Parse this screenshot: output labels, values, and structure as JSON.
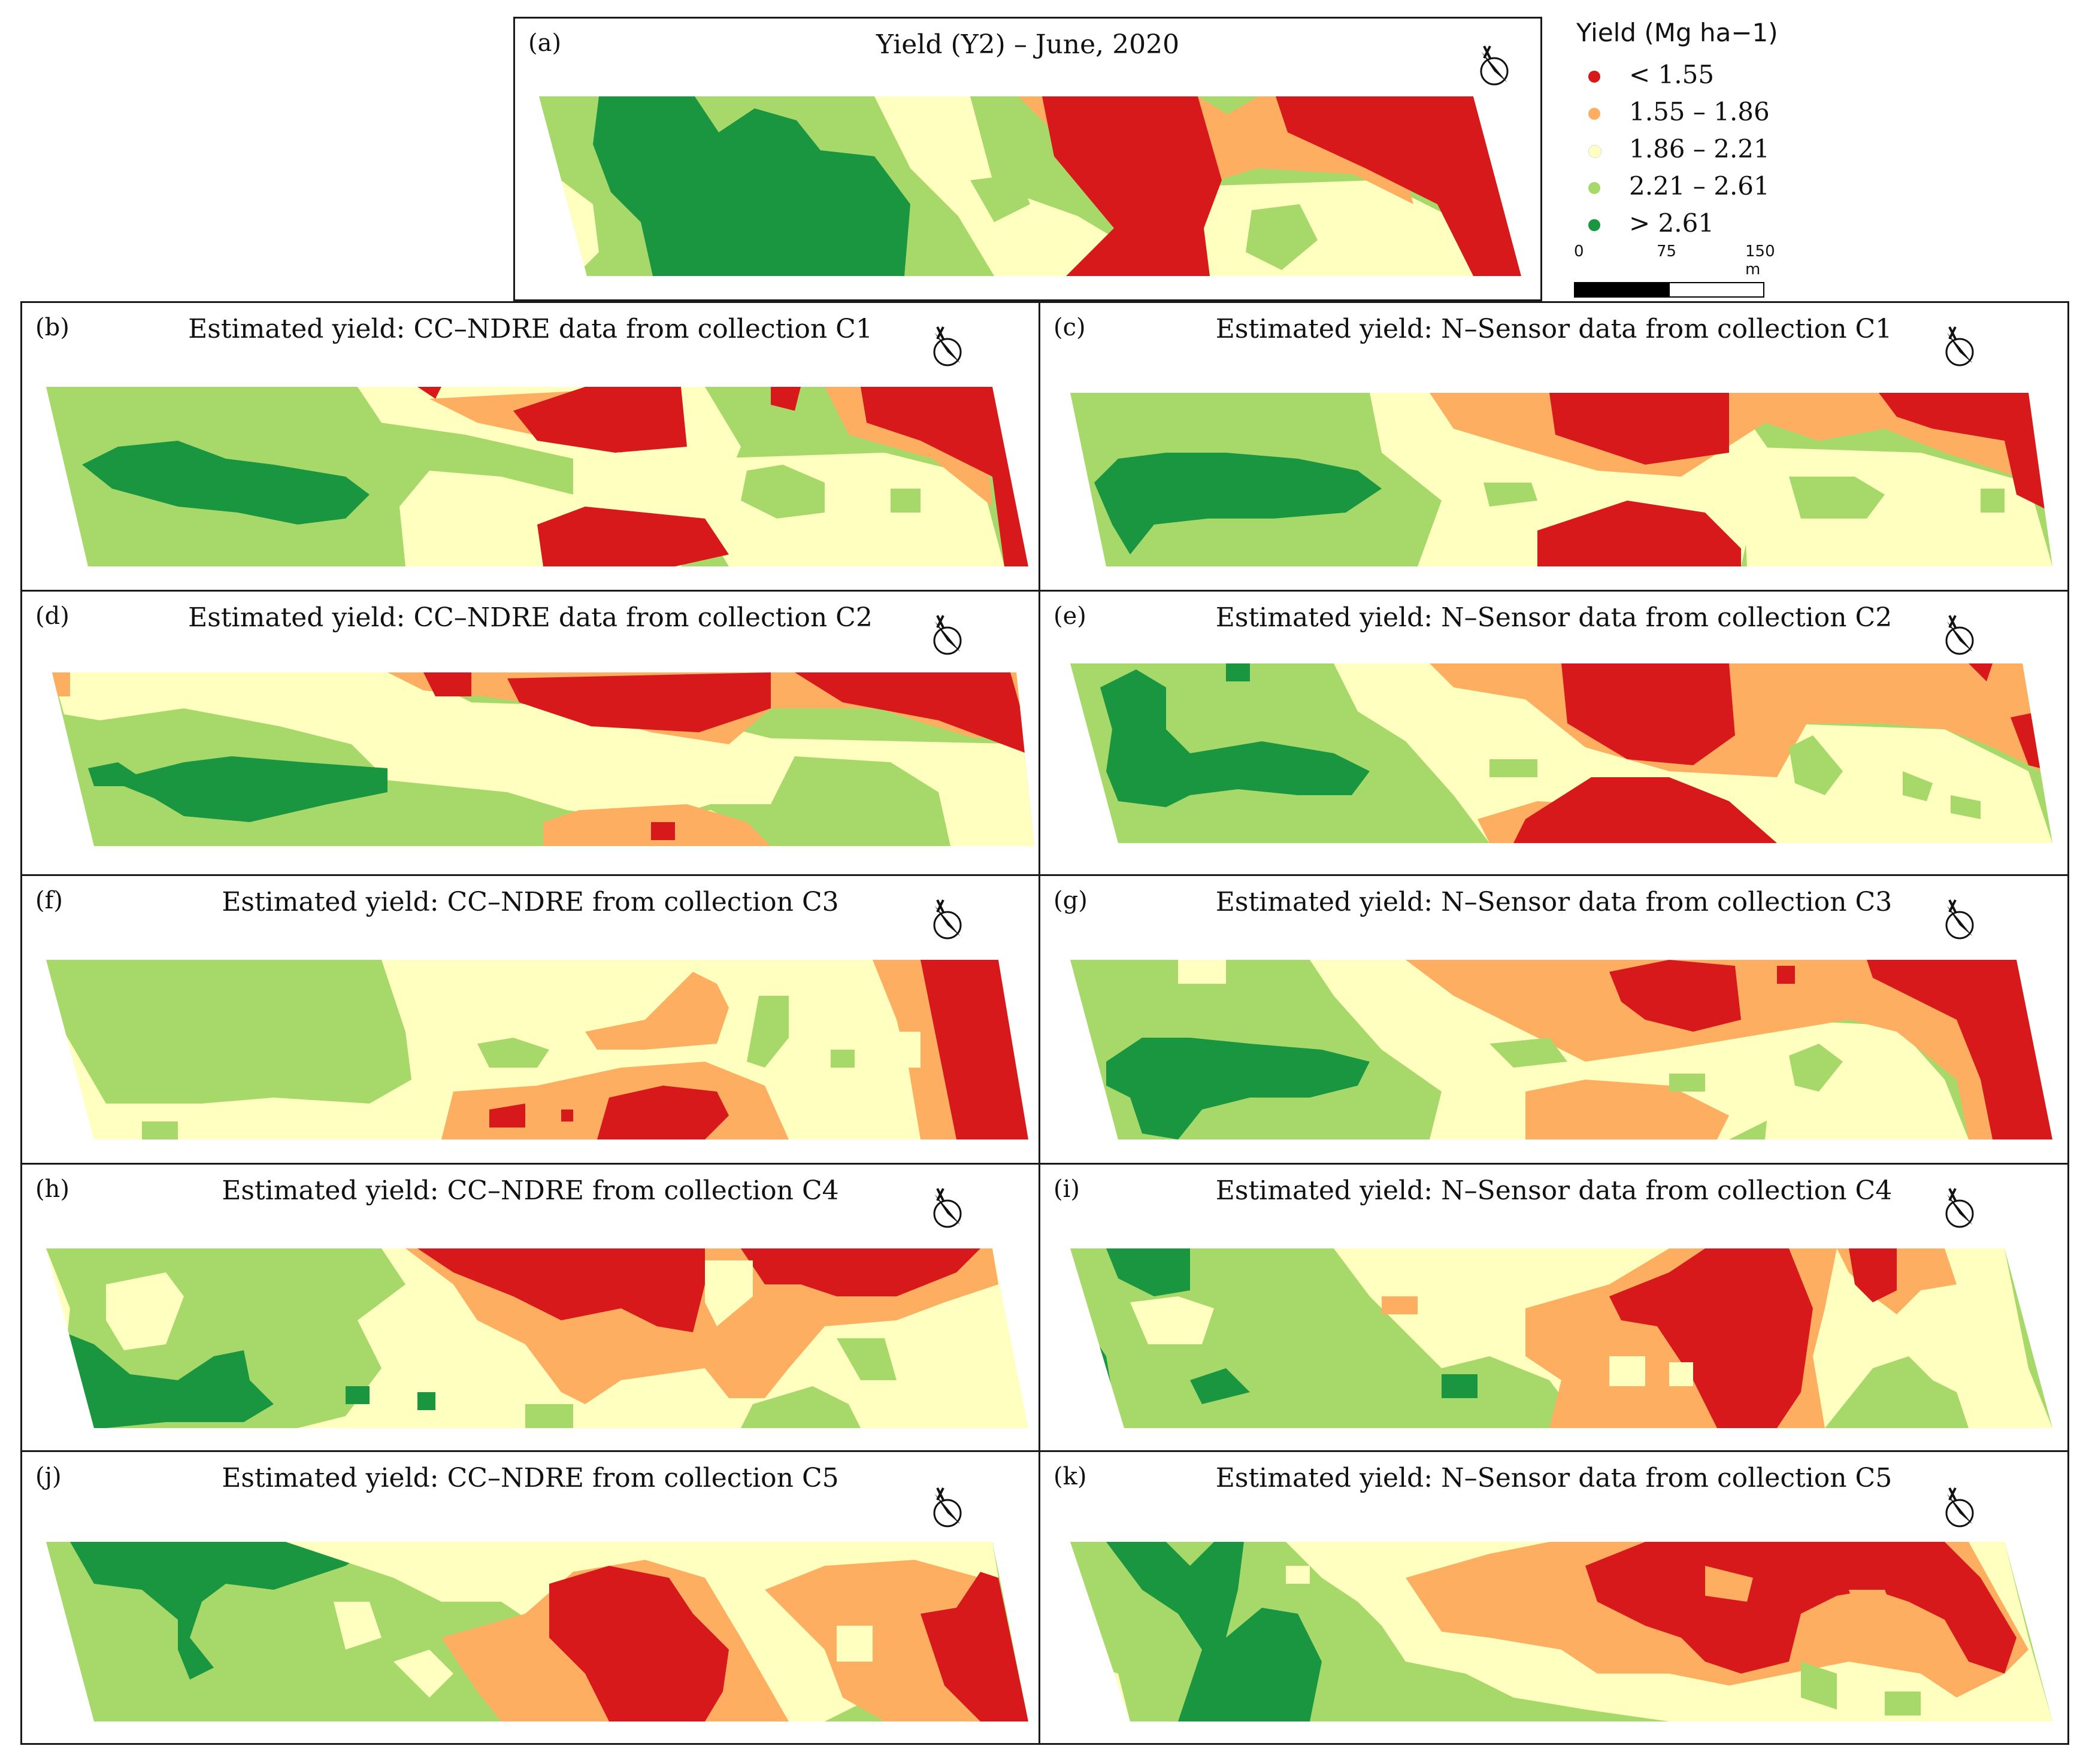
{
  "colors": {
    "lt155": "#d7191c",
    "r155_186": "#fdae61",
    "r186_221": "#ffffbf",
    "r221_261": "#a6d96a",
    "gt261": "#1a9641"
  },
  "legend": {
    "title": "Yield (Mg ha−1)",
    "classes": [
      {
        "label": "< 1.55",
        "color": "#d7191c"
      },
      {
        "label": "1.55 – 1.86",
        "color": "#fdae61"
      },
      {
        "label": "1.86 – 2.21",
        "color": "#ffffbf"
      },
      {
        "label": "2.21 – 2.61",
        "color": "#a6d96a"
      },
      {
        "label": "> 2.61",
        "color": "#1a9641"
      }
    ],
    "scale_labels": [
      "0",
      "75",
      "150 m"
    ]
  },
  "north_icon": "north-arrow-icon",
  "panels": [
    {
      "label": "(a)",
      "title": "Yield (Y2) – June, 2020"
    },
    {
      "label": "(b)",
      "title": "Estimated yield: CC–NDRE data from collection C1"
    },
    {
      "label": "(c)",
      "title": "Estimated yield: N–Sensor data from collection C1"
    },
    {
      "label": "(d)",
      "title": "Estimated yield: CC–NDRE data from collection C2"
    },
    {
      "label": "(e)",
      "title": "Estimated yield: N–Sensor data from collection C2"
    },
    {
      "label": "(f)",
      "title": "Estimated yield: CC–NDRE from collection C3"
    },
    {
      "label": "(g)",
      "title": "Estimated yield: N–Sensor data from collection C3"
    },
    {
      "label": "(h)",
      "title": "Estimated yield: CC–NDRE from collection C4"
    },
    {
      "label": "(i)",
      "title": "Estimated yield: N–Sensor data from collection C4"
    },
    {
      "label": "(j)",
      "title": "Estimated yield: CC–NDRE from collection C5"
    },
    {
      "label": "(k)",
      "title": "Estimated yield: N–Sensor data from collection C5"
    }
  ]
}
